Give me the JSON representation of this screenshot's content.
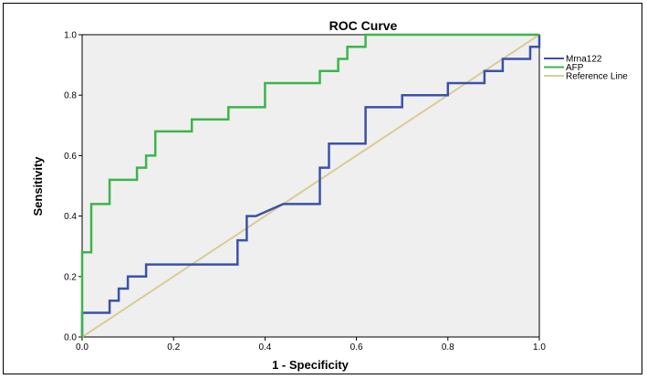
{
  "chart_data": {
    "type": "line",
    "title": "ROC Curve",
    "xlabel": "1 - Specificity",
    "ylabel": "Sensitivity",
    "xlim": [
      0,
      1
    ],
    "ylim": [
      0,
      1
    ],
    "x_ticks": [
      "0.0",
      "0.2",
      "0.4",
      "0.6",
      "0.8",
      "1.0"
    ],
    "y_ticks": [
      "0.0",
      "0.2",
      "0.4",
      "0.6",
      "0.8",
      "1.0"
    ],
    "legend_position": "right",
    "plot_background": "#efefef",
    "series": [
      {
        "name": "Mrna122",
        "color": "#3a52a8",
        "x": [
          0,
          0,
          0.06,
          0.06,
          0.08,
          0.08,
          0.1,
          0.1,
          0.14,
          0.14,
          0.34,
          0.34,
          0.36,
          0.36,
          0.38,
          0.38,
          0.44,
          0.44,
          0.52,
          0.52,
          0.54,
          0.54,
          0.62,
          0.62,
          0.68,
          0.68,
          0.7,
          0.7,
          0.8,
          0.8,
          0.86,
          0.86,
          0.88,
          0.88,
          0.92,
          0.92,
          0.98,
          0.98,
          1.0,
          1.0
        ],
        "y": [
          0,
          0.08,
          0.08,
          0.12,
          0.12,
          0.16,
          0.16,
          0.2,
          0.2,
          0.24,
          0.24,
          0.32,
          0.32,
          0.4,
          0.4,
          0.4,
          0.44,
          0.44,
          0.44,
          0.56,
          0.56,
          0.64,
          0.64,
          0.76,
          0.76,
          0.76,
          0.76,
          0.8,
          0.8,
          0.84,
          0.84,
          0.84,
          0.84,
          0.88,
          0.88,
          0.92,
          0.92,
          0.96,
          0.96,
          1.0
        ]
      },
      {
        "name": "AFP",
        "color": "#3cb54a",
        "x": [
          0,
          0,
          0.02,
          0.02,
          0.06,
          0.06,
          0.12,
          0.12,
          0.14,
          0.14,
          0.16,
          0.16,
          0.24,
          0.24,
          0.32,
          0.32,
          0.4,
          0.4,
          0.52,
          0.52,
          0.56,
          0.56,
          0.58,
          0.58,
          0.62,
          0.62,
          1.0
        ],
        "y": [
          0,
          0.28,
          0.28,
          0.44,
          0.44,
          0.52,
          0.52,
          0.56,
          0.56,
          0.6,
          0.6,
          0.68,
          0.68,
          0.72,
          0.72,
          0.76,
          0.76,
          0.84,
          0.84,
          0.88,
          0.88,
          0.92,
          0.92,
          0.96,
          0.96,
          1.0,
          1.0
        ]
      },
      {
        "name": "Reference Line",
        "color": "#d9cc95",
        "x": [
          0,
          1
        ],
        "y": [
          0,
          1
        ]
      }
    ]
  }
}
